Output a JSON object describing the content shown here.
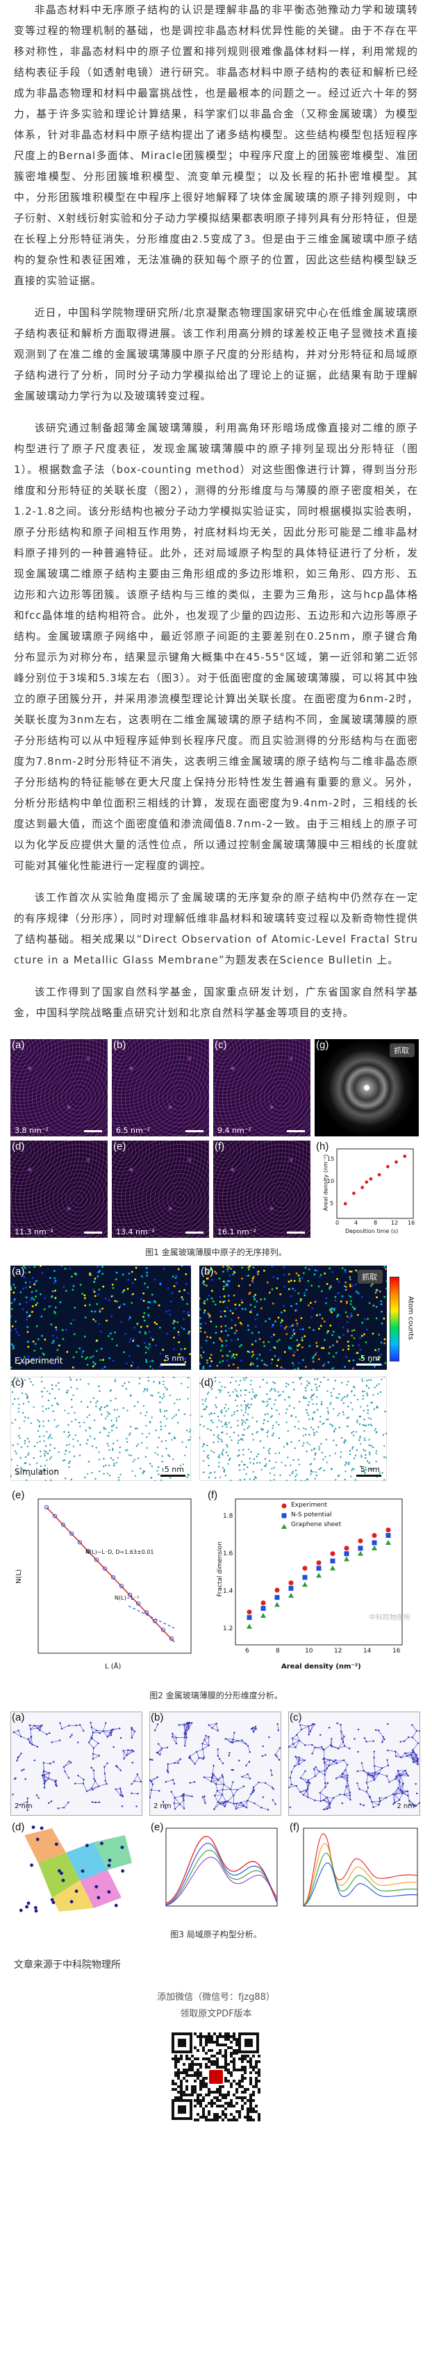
{
  "article": {
    "paragraphs": [
      "非晶态材料中无序原子结构的认识是理解非晶的非平衡态弛豫动力学和玻璃转变等过程的物理机制的基础，也是调控非晶态材料优异性能的关键。由于不存在平移对称性，非晶态材料中的原子位置和排列规则很难像晶体材料一样，利用常规的结构表征手段（如透射电镜）进行研究。非晶态材料中原子结构的表征和解析已经成为非晶态物理和材料中最富挑战性，也是最根本的问题之一。经过近六十年的努力，基于许多实验和理论计算结果，科学家们以非晶合金（又称金属玻璃）为模型体系，针对非晶态材料中原子结构提出了诸多结构模型。这些结构模型包括短程序尺度上的Bernal多面体、Miracle团簇模型；中程序尺度上的团簇密堆模型、准团簇密堆模型、分形团簇堆积模型、流变单元模型；以及长程的拓扑密堆模型。其中，分形团簇堆积模型在中程序上很好地解释了块体金属玻璃的原子排列规则，中子衍射、X射线衍射实验和分子动力学模拟结果都表明原子排列具有分形特征，但是在长程上分形特征消失，分形维度由2.5变成了3。但是由于三维金属玻璃中原子结构的复杂性和表征困难，无法准确的获知每个原子的位置，因此这些结构模型缺乏直接的实验证据。",
      "近日，中国科学院物理研究所/北京凝聚态物理国家研究中心在低维金属玻璃原子结构表征和解析方面取得进展。该工作利用高分辨的球差校正电子显微技术直接观测到了在准二维的金属玻璃薄膜中原子尺度的分形结构，并对分形特征和局域原子结构进行了分析，同时分子动力学模拟给出了理论上的证据，此结果有助于理解金属玻璃动力学行为以及玻璃转变过程。",
      "该研究通过制备超薄金属玻璃薄膜，利用高角环形暗场成像直接对二维的原子构型进行了原子尺度表征，发现金属玻璃薄膜中的原子排列呈现出分形特征（图1）。根据数盒子法（box-counting method）对这些图像进行计算，得到当分形维度和分形特征的关联长度（图2），测得的分形维度与与薄膜的原子密度相关，在1.2-1.8之间。该分形结构也被分子动力学模拟实验证实，同时根据模拟实验表明，原子分形结构和原子间相互作用势，衬底材料均无关，因此分形可能是二维非晶材料原子排列的一种普遍特征。此外，还对局域原子构型的具体特征进行了分析，发现金属玻璃二维原子结构主要由三角形组成的多边形堆积，如三角形、四方形、五边形和六边形等团簇。该原子结构与三维的类似，主要为三角形，这与hcp晶体格和fcc晶体堆的结构相符合。此外，也发现了少量的四边形、五边形和六边形等原子结构。金属玻璃原子网络中，最近邻原子间距的主要差别在0.25nm，原子键合角分布显示为对称分布，结果显示键角大概集中在45-55°区域，第一近邻和第二近邻峰分别位于3埃和5.3埃左右（图3）。对于低面密度的金属玻璃薄膜，可以将其中独立的原子团簇分开，并采用渗流模型理论计算出关联长度。在面密度为6nm-2时，关联长度为3nm左右，这表明在二维金属玻璃的原子结构不同，金属玻璃薄膜的原子分形结构可以从中短程序延伸到长程序尺度。而且实验测得的分形结构与在面密度为7.8nm-2时分形特征不消失，这表明三维金属玻璃的原子结构与二维非晶态原子分形结构的特征能够在更大尺度上保持分形特性发生普遍有重要的意义。另外，分析分形结构中单位面积三相线的计算，发现在面密度为9.4nm-2时，三相线的长度达到最大值，而这个面密度值和渗流阈值8.7nm-2一致。由于三相线上的原子可以为化学反应提供大量的活性位点，所以通过控制金属玻璃薄膜中三相线的长度就可能对其催化性能进行一定程度的调控。",
      "该工作首次从实验角度揭示了金属玻璃的无序复杂的原子结构中仍然存在一定的有序规律（分形序），同时对理解低维非晶材料和玻璃转变过程以及新奇物性提供了结构基础。相关成果以“Direct Observation of Atomic-Level Fractal Structure in a Metallic Glass Membrane”为题发表在Science Bulletin 上。",
      "该工作得到了国家自然科学基金，国家重点研发计划，广东省国家自然科学基金，中国科学院战略重点研究计划和北京自然科学基金等项目的支持。"
    ],
    "source": "文章来源于中科院物理所"
  },
  "figure1": {
    "panels": [
      {
        "label": "(a)",
        "scale": "3.8 nm⁻²"
      },
      {
        "label": "(b)",
        "scale": "6.5 nm⁻²"
      },
      {
        "label": "(c)",
        "scale": "9.4 nm⁻²"
      },
      {
        "label": "(d)",
        "scale": "11.3 nm⁻²"
      },
      {
        "label": "(e)",
        "scale": "13.4 nm⁻²"
      },
      {
        "label": "(f)",
        "scale": "16.1 nm⁻²"
      },
      {
        "label": "(g)",
        "scale": ""
      },
      {
        "label": "(h)",
        "scale": ""
      }
    ],
    "grab_label": "抓取",
    "chart_h": {
      "ylabel": "Areal density (nm⁻²)",
      "xlabel": "Deposition time (s)",
      "xticks": [
        "0",
        "4",
        "8",
        "12",
        "16"
      ],
      "yticks": [
        "5",
        "10",
        "15"
      ]
    },
    "caption": "图1 金属玻璃薄膜中原子的无序排列。"
  },
  "figure2": {
    "panel_a": {
      "label": "(a)",
      "tag": "Experiment",
      "scale": "5 nm"
    },
    "panel_b": {
      "label": "(b)",
      "scale": "5 nm"
    },
    "panel_c": {
      "label": "(c)",
      "tag": "Simulation",
      "scale": "5 nm"
    },
    "panel_d": {
      "label": "(d)",
      "scale": "5 nm"
    },
    "panel_e": {
      "label": "(e)",
      "ylabel": "N(L)",
      "xlabel": "L (Å)",
      "fit1": "N(L)~L⁻D, D=1.63±0.01",
      "fit2": "N(L)~L⁻²"
    },
    "panel_f": {
      "label": "(f)",
      "ylabel": "Fractal dimension",
      "xlabel": "Areal density (nm⁻²)",
      "legend": [
        "Experiment",
        "N-S potential",
        "Graphene sheet"
      ],
      "xticks": [
        "6",
        "8",
        "10",
        "12",
        "14",
        "16"
      ],
      "yticks": [
        "1.2",
        "1.4",
        "1.6",
        "1.8"
      ]
    },
    "colorbar_label": "Atom counts",
    "grab_label": "抓取",
    "watermark": "中科院物理所",
    "caption": "图2 金属玻璃薄膜的分形维度分析。"
  },
  "figure3": {
    "panels": [
      {
        "label": "(a)",
        "scale": "2 nm"
      },
      {
        "label": "(b)",
        "scale": "2 nm"
      },
      {
        "label": "(c)",
        "scale": "2 nm"
      },
      {
        "label": "(d)",
        "scale": ""
      },
      {
        "label": "(e)",
        "scale": ""
      },
      {
        "label": "(f)",
        "scale": ""
      }
    ],
    "caption": "图3 局域原子构型分析。"
  },
  "promo": {
    "line1": "添加微信（微信号：fjzg88）",
    "line2": "领取原文PDF版本"
  },
  "colors": {
    "text": "#333333",
    "stem_purple": "#2a0d3a",
    "map_dark": "#07122e",
    "red_point": "#e02020",
    "blue_point": "#1f4fd6",
    "green_point": "#2e9a3a"
  }
}
